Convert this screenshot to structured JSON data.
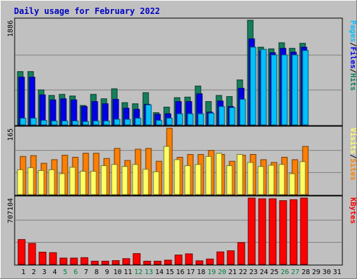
{
  "colors": {
    "frame": "#c0c0c0",
    "title": "#0000c0",
    "hits": "#157e5c",
    "files": "#0000e6",
    "pages": "#00c0ff",
    "visits": "#ffff66",
    "sites": "#ff8000",
    "kbytes": "#ff0000",
    "weekend_day": "#008040",
    "weekday": "#000000"
  },
  "chart_data": {
    "type": "bar",
    "title": "Daily usage for February 2022",
    "x": {
      "days": [
        1,
        2,
        3,
        4,
        5,
        6,
        7,
        8,
        9,
        10,
        11,
        12,
        13,
        14,
        15,
        16,
        17,
        18,
        19,
        20,
        21,
        22,
        23,
        24,
        25,
        26,
        27,
        28,
        29,
        30,
        31
      ],
      "weekend_days": [
        5,
        6,
        12,
        13,
        19,
        20,
        26,
        27
      ]
    },
    "panels": [
      {
        "id": "hits_files_pages",
        "max_label": "1886",
        "ylim": [
          0,
          1886
        ],
        "legend": [
          {
            "key": "pages",
            "label": "Pages"
          },
          {
            "key": "sep",
            "label": "/"
          },
          {
            "key": "files",
            "label": "Files"
          },
          {
            "key": "sep",
            "label": "/"
          },
          {
            "key": "hits",
            "label": "Hits"
          }
        ],
        "series": [
          {
            "name": "Hits",
            "color_key": "hits",
            "values": [
              960,
              960,
              630,
              530,
              550,
              520,
              350,
              550,
              470,
              650,
              400,
              380,
              580,
              220,
              320,
              490,
              500,
              700,
              420,
              530,
              510,
              810,
              1886,
              1400,
              1370,
              1480,
              1380,
              1470
            ]
          },
          {
            "name": "Files",
            "color_key": "files",
            "values": [
              860,
              860,
              540,
              450,
              470,
              450,
              330,
              420,
              380,
              460,
              300,
              280,
              370,
              190,
              200,
              420,
              420,
              560,
              230,
              430,
              330,
              660,
              1550,
              1330,
              1300,
              1380,
              1310,
              1400
            ]
          },
          {
            "name": "Pages",
            "color_key": "pages",
            "values": [
              120,
              120,
              80,
              70,
              70,
              70,
              60,
              70,
              70,
              100,
              100,
              120,
              360,
              80,
              120,
              200,
              200,
              200,
              210,
              330,
              310,
              460,
              1400,
              1360,
              1260,
              1260,
              1260,
              1340
            ]
          }
        ]
      },
      {
        "id": "visits_sites",
        "max_label": "165",
        "ylim": [
          0,
          165
        ],
        "legend": [
          {
            "key": "visits",
            "label": "Visits"
          },
          {
            "key": "sep",
            "label": "/"
          },
          {
            "key": "sites",
            "label": "Sites"
          }
        ],
        "series": [
          {
            "name": "Sites",
            "color_key": "sites",
            "values": [
              95,
              97,
              78,
              87,
              98,
              93,
              103,
              103,
              90,
              115,
              85,
              113,
              115,
              83,
              165,
              93,
              100,
              100,
              110,
              100,
              83,
              98,
              100,
              87,
              80,
              93,
              87,
              120
            ]
          },
          {
            "name": "Visits",
            "color_key": "visits",
            "values": [
              62,
              67,
              60,
              62,
              52,
              68,
              58,
              58,
              72,
              75,
              70,
              75,
              63,
              57,
              120,
              87,
              72,
              75,
              95,
              103,
              72,
              100,
              80,
              70,
              73,
              75,
              52,
              82
            ]
          }
        ]
      },
      {
        "id": "kbytes",
        "max_label": "707104",
        "ylim": [
          0,
          707104
        ],
        "legend": [
          {
            "key": "kbytes",
            "label": "KBytes"
          }
        ],
        "series": [
          {
            "name": "KBytes",
            "color_key": "kbytes",
            "values": [
              265000,
              224000,
              130000,
              125000,
              67000,
              67000,
              72000,
              34000,
              34000,
              40000,
              61000,
              115000,
              34000,
              34000,
              45000,
              100000,
              112000,
              38000,
              57000,
              133000,
              145000,
              233000,
              707104,
              700000,
              700000,
              680000,
              690000,
              707104
            ]
          }
        ]
      }
    ]
  }
}
